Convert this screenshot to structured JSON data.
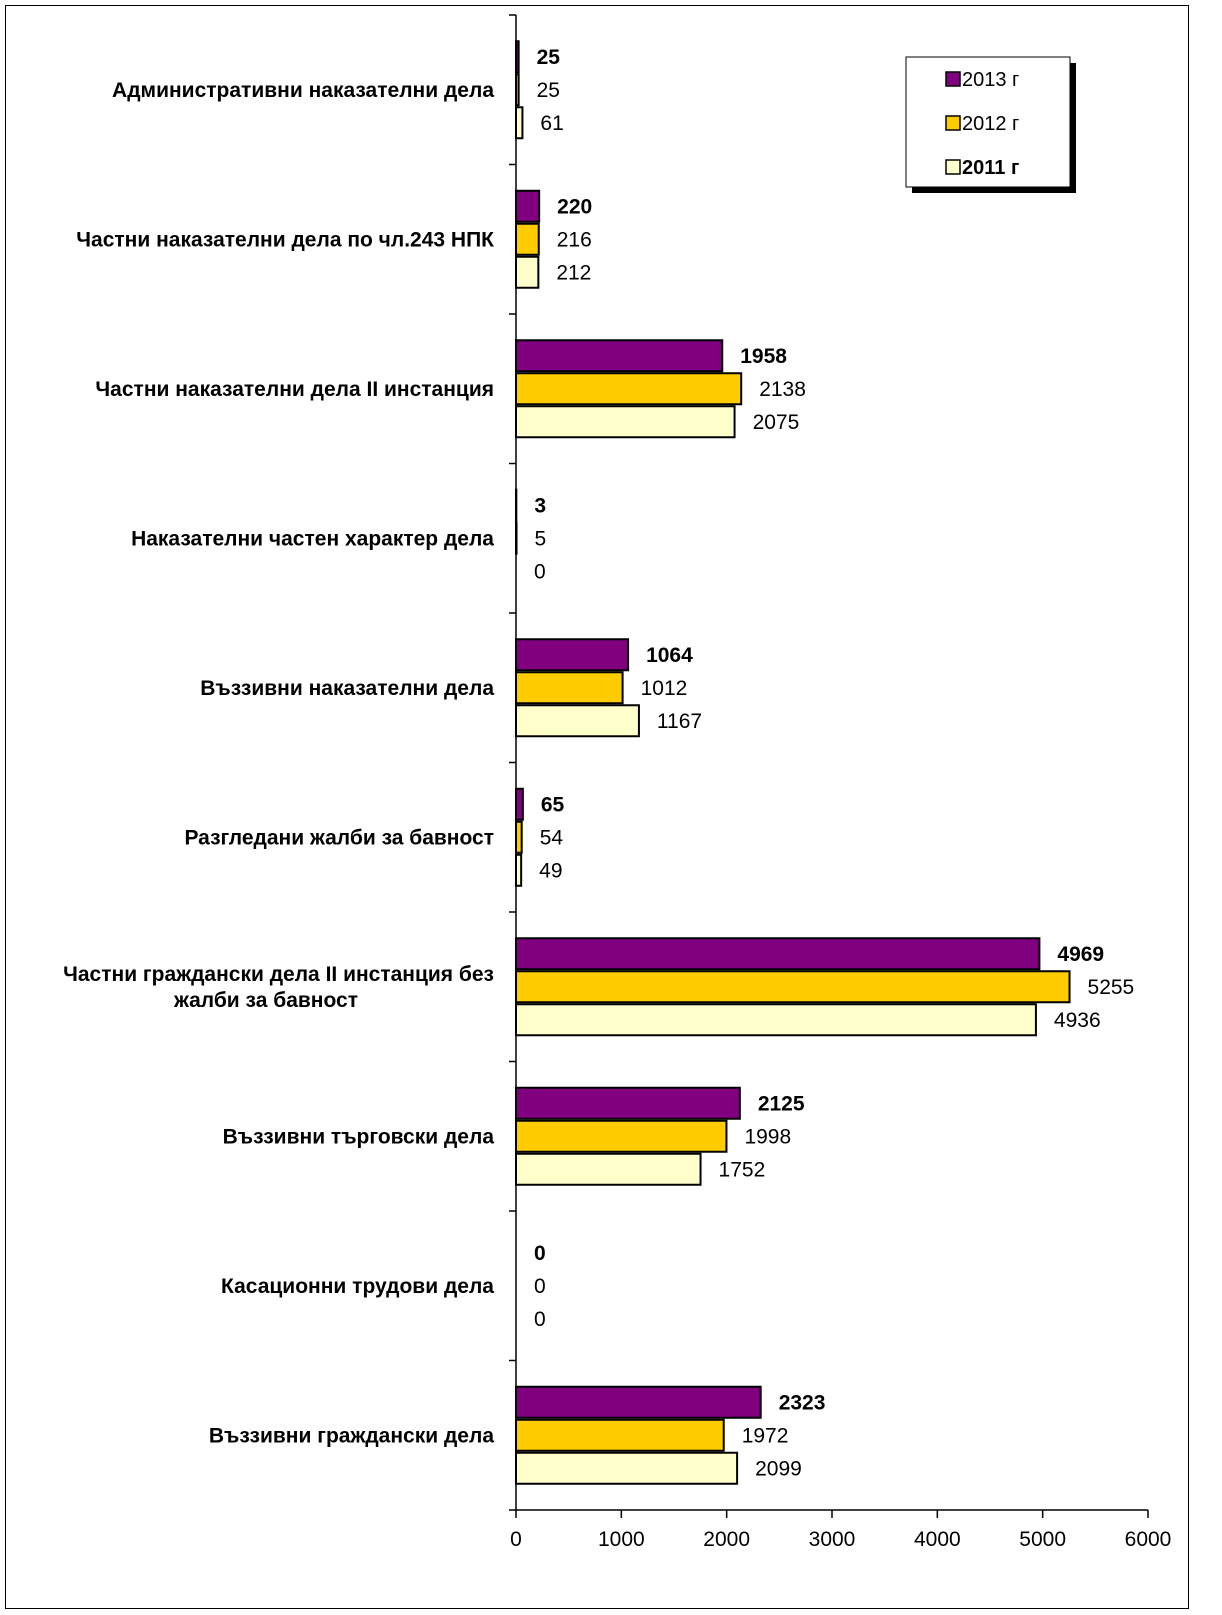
{
  "chart_data": {
    "type": "bar",
    "orientation": "horizontal",
    "categories": [
      "Административни наказателни дела",
      "Частни наказателни дела по чл.243 НПК",
      "Частни наказателни дела II инстанция",
      "Наказателни частен характер дела",
      "Въззивни  наказателни дела",
      "Разгледани жалби за бавност",
      "Частни граждански дела II инстанция без жалби за бавност",
      "Въззивни търговски дела",
      "Касационни трудови дела",
      "Въззивни  граждански дела"
    ],
    "category_lines": [
      [
        "Административни наказателни дела"
      ],
      [
        "Частни наказателни дела по чл.243 НПК"
      ],
      [
        "Частни наказателни дела II инстанция"
      ],
      [
        "Наказателни частен характер дела"
      ],
      [
        "Въззивни  наказателни дела"
      ],
      [
        "Разгледани жалби за бавност"
      ],
      [
        "Частни граждански дела II инстанция без",
        "жалби за бавност"
      ],
      [
        "Въззивни търговски дела"
      ],
      [
        "Касационни трудови дела"
      ],
      [
        "Въззивни  граждански дела"
      ]
    ],
    "series": [
      {
        "name": "2013 г",
        "color": "#800080",
        "bold": true,
        "values": [
          25,
          220,
          1958,
          3,
          1064,
          65,
          4969,
          2125,
          0,
          2323
        ]
      },
      {
        "name": "2012 г",
        "color": "#FFCC00",
        "bold": false,
        "values": [
          25,
          216,
          2138,
          5,
          1012,
          54,
          5255,
          1998,
          0,
          1972
        ]
      },
      {
        "name": "2011 г",
        "color": "#FFFFCC",
        "bold": false,
        "legend_bold": true,
        "values": [
          61,
          212,
          2075,
          0,
          1167,
          49,
          4936,
          1752,
          0,
          2099
        ]
      }
    ],
    "xlim": [
      0,
      6000
    ],
    "xticks": [
      "0",
      "1000",
      "2000",
      "3000",
      "4000",
      "5000",
      "6000"
    ],
    "legend_position": "top-right",
    "grid": false,
    "title": "",
    "xlabel": "",
    "ylabel": ""
  }
}
